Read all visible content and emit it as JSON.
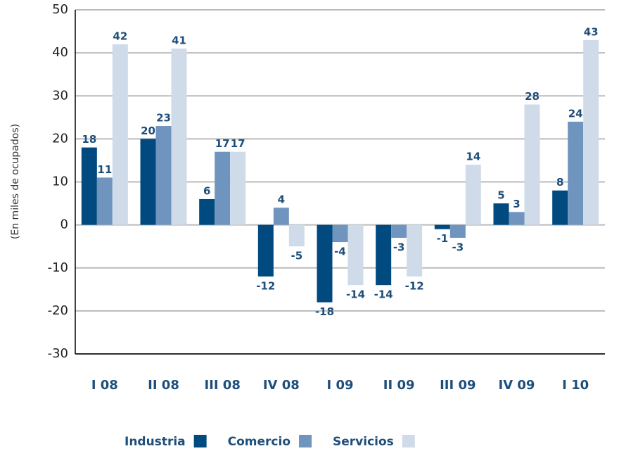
{
  "chart_data": {
    "type": "bar",
    "y_label": "(En miles de ocupados)",
    "categories": [
      "I 08",
      "II 08",
      "III 08",
      "IV 08",
      "I 09",
      "II 09",
      "III 09",
      "IV 09",
      "I 10"
    ],
    "series": [
      {
        "name": "Industria",
        "color": "#004a80",
        "values": [
          18,
          20,
          6,
          -12,
          -18,
          -14,
          -1,
          5,
          8
        ]
      },
      {
        "name": "Comercio",
        "color": "#6f95bf",
        "values": [
          11,
          23,
          17,
          4,
          -4,
          -3,
          -3,
          3,
          24
        ]
      },
      {
        "name": "Servicios",
        "color": "#d0dbe9",
        "values": [
          42,
          41,
          17,
          -5,
          -14,
          -12,
          14,
          28,
          43
        ]
      }
    ],
    "ylim": [
      -30,
      50
    ],
    "yticks": [
      -30,
      -20,
      -10,
      0,
      10,
      20,
      30,
      40,
      50
    ],
    "grid": true
  }
}
